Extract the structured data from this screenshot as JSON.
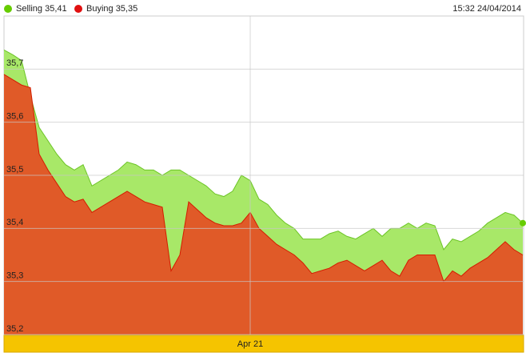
{
  "chart_data": {
    "type": "area",
    "timestamp": "15:32 24/04/2014",
    "categories": [
      null,
      null,
      null,
      null,
      null,
      null,
      null,
      null,
      null,
      null,
      null,
      null,
      null,
      null,
      null,
      null,
      null,
      null,
      null,
      null,
      null,
      null,
      null,
      null,
      null,
      null,
      null,
      null,
      "Apr 21",
      null,
      null,
      null,
      null,
      null,
      null,
      null,
      null,
      null,
      null,
      null,
      null,
      null,
      null,
      null,
      null,
      null,
      null,
      null,
      null,
      null,
      null,
      null,
      null,
      null,
      null,
      null,
      null,
      null,
      null,
      null
    ],
    "series": [
      {
        "name": "Selling 35,41",
        "color": "#a8e868",
        "line_color": "#6cc426",
        "dot_color": "#66cc00",
        "values": [
          35.736,
          35.727,
          35.716,
          35.65,
          35.59,
          35.565,
          35.54,
          35.52,
          35.51,
          35.52,
          35.48,
          35.49,
          35.5,
          35.51,
          35.525,
          35.52,
          35.51,
          35.51,
          35.5,
          35.51,
          35.51,
          35.5,
          35.49,
          35.48,
          35.465,
          35.46,
          35.47,
          35.5,
          35.49,
          35.455,
          35.445,
          35.425,
          35.41,
          35.4,
          35.38,
          35.38,
          35.38,
          35.39,
          35.395,
          35.385,
          35.38,
          35.39,
          35.4,
          35.385,
          35.4,
          35.4,
          35.41,
          35.4,
          35.41,
          35.405,
          35.36,
          35.38,
          35.375,
          35.385,
          35.395,
          35.41,
          35.42,
          35.43,
          35.425,
          35.41
        ]
      },
      {
        "name": "Buying 35,35",
        "color": "#e05a28",
        "line_color": "#d41c00",
        "dot_color": "#e01010",
        "values": [
          35.69,
          35.68,
          35.67,
          35.665,
          35.54,
          35.51,
          35.485,
          35.46,
          35.45,
          35.455,
          35.43,
          35.44,
          35.45,
          35.46,
          35.47,
          35.46,
          35.45,
          35.445,
          35.44,
          35.32,
          35.35,
          35.45,
          35.435,
          35.42,
          35.41,
          35.405,
          35.405,
          35.41,
          35.43,
          35.4,
          35.385,
          35.37,
          35.36,
          35.35,
          35.335,
          35.315,
          35.32,
          35.325,
          35.335,
          35.34,
          35.33,
          35.32,
          35.33,
          35.34,
          35.32,
          35.31,
          35.34,
          35.35,
          35.35,
          35.35,
          35.3,
          35.32,
          35.31,
          35.325,
          35.335,
          35.345,
          35.36,
          35.375,
          35.36,
          35.35
        ]
      }
    ],
    "ylim": [
      35.2,
      35.8
    ],
    "yticks": [
      {
        "value": 35.2,
        "label": "35,2"
      },
      {
        "value": 35.3,
        "label": "35,3"
      },
      {
        "value": 35.4,
        "label": "35,4"
      },
      {
        "value": 35.5,
        "label": "35,5"
      },
      {
        "value": 35.6,
        "label": "35,6"
      },
      {
        "value": 35.7,
        "label": "35,7"
      }
    ],
    "grid": true
  }
}
